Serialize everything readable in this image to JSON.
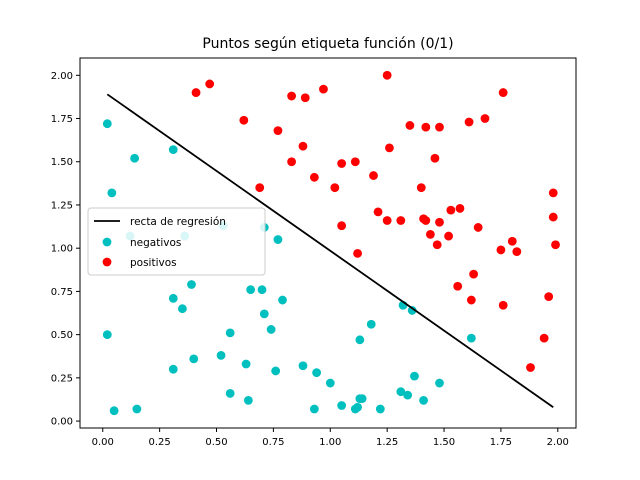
{
  "chart_data": {
    "type": "scatter",
    "title": "Puntos según etiqueta función (0/1)",
    "xlabel": "",
    "ylabel": "",
    "xlim": [
      -0.1,
      2.08
    ],
    "ylim": [
      -0.04,
      2.1
    ],
    "xticks": [
      "0.00",
      "0.25",
      "0.50",
      "0.75",
      "1.00",
      "1.25",
      "1.50",
      "1.75",
      "2.00"
    ],
    "yticks": [
      "0.00",
      "0.25",
      "0.50",
      "0.75",
      "1.00",
      "1.25",
      "1.50",
      "1.75",
      "2.00"
    ],
    "grid": false,
    "legend_position": "center-left",
    "regression_line": {
      "name": "recta de regresión",
      "color": "#000000",
      "points": [
        [
          0.02,
          1.89
        ],
        [
          1.98,
          0.08
        ]
      ]
    },
    "series": [
      {
        "name": "negativos",
        "color": "#00bfbf",
        "points": [
          [
            0.02,
            1.72
          ],
          [
            0.04,
            1.32
          ],
          [
            0.14,
            1.52
          ],
          [
            0.31,
            1.57
          ],
          [
            0.12,
            1.07
          ],
          [
            0.36,
            1.07
          ],
          [
            0.53,
            1.13
          ],
          [
            0.71,
            1.12
          ],
          [
            0.77,
            1.05
          ],
          [
            0.31,
            0.71
          ],
          [
            0.35,
            0.65
          ],
          [
            0.39,
            0.79
          ],
          [
            0.65,
            0.76
          ],
          [
            0.7,
            0.76
          ],
          [
            0.79,
            0.7
          ],
          [
            0.71,
            0.62
          ],
          [
            0.74,
            0.53
          ],
          [
            0.56,
            0.51
          ],
          [
            0.02,
            0.5
          ],
          [
            0.52,
            0.38
          ],
          [
            0.4,
            0.36
          ],
          [
            0.31,
            0.3
          ],
          [
            0.63,
            0.33
          ],
          [
            0.76,
            0.29
          ],
          [
            0.88,
            0.32
          ],
          [
            0.94,
            0.28
          ],
          [
            1.0,
            0.22
          ],
          [
            1.13,
            0.47
          ],
          [
            1.18,
            0.56
          ],
          [
            1.32,
            0.67
          ],
          [
            1.36,
            0.64
          ],
          [
            1.62,
            0.48
          ],
          [
            1.37,
            0.26
          ],
          [
            1.48,
            0.22
          ],
          [
            1.31,
            0.17
          ],
          [
            1.34,
            0.15
          ],
          [
            1.41,
            0.12
          ],
          [
            0.56,
            0.16
          ],
          [
            0.64,
            0.12
          ],
          [
            1.13,
            0.13
          ],
          [
            1.14,
            0.13
          ],
          [
            1.05,
            0.09
          ],
          [
            1.11,
            0.07
          ],
          [
            1.12,
            0.08
          ],
          [
            1.22,
            0.07
          ],
          [
            0.93,
            0.07
          ],
          [
            0.05,
            0.06
          ],
          [
            0.15,
            0.07
          ]
        ]
      },
      {
        "name": "positivos",
        "color": "#ff0000",
        "points": [
          [
            1.25,
            2.0
          ],
          [
            0.47,
            1.95
          ],
          [
            0.41,
            1.9
          ],
          [
            0.83,
            1.88
          ],
          [
            0.89,
            1.87
          ],
          [
            0.97,
            1.92
          ],
          [
            1.76,
            1.9
          ],
          [
            1.68,
            1.75
          ],
          [
            1.61,
            1.73
          ],
          [
            0.62,
            1.74
          ],
          [
            0.77,
            1.68
          ],
          [
            1.35,
            1.71
          ],
          [
            1.42,
            1.7
          ],
          [
            1.48,
            1.7
          ],
          [
            0.88,
            1.59
          ],
          [
            1.26,
            1.58
          ],
          [
            0.83,
            1.5
          ],
          [
            1.05,
            1.49
          ],
          [
            1.11,
            1.5
          ],
          [
            1.46,
            1.52
          ],
          [
            0.93,
            1.41
          ],
          [
            1.19,
            1.42
          ],
          [
            1.02,
            1.35
          ],
          [
            0.69,
            1.35
          ],
          [
            1.4,
            1.35
          ],
          [
            1.98,
            1.32
          ],
          [
            1.21,
            1.21
          ],
          [
            1.53,
            1.22
          ],
          [
            1.57,
            1.23
          ],
          [
            1.25,
            1.16
          ],
          [
            1.31,
            1.16
          ],
          [
            1.41,
            1.17
          ],
          [
            1.42,
            1.16
          ],
          [
            1.48,
            1.15
          ],
          [
            1.98,
            1.18
          ],
          [
            1.05,
            1.13
          ],
          [
            1.65,
            1.12
          ],
          [
            1.44,
            1.08
          ],
          [
            1.52,
            1.07
          ],
          [
            1.47,
            1.02
          ],
          [
            1.8,
            1.04
          ],
          [
            1.75,
            0.99
          ],
          [
            1.82,
            0.98
          ],
          [
            1.99,
            1.02
          ],
          [
            1.12,
            0.97
          ],
          [
            1.63,
            0.85
          ],
          [
            1.56,
            0.78
          ],
          [
            1.62,
            0.7
          ],
          [
            1.76,
            0.67
          ],
          [
            1.96,
            0.72
          ],
          [
            1.94,
            0.48
          ],
          [
            1.88,
            0.31
          ]
        ]
      }
    ]
  }
}
